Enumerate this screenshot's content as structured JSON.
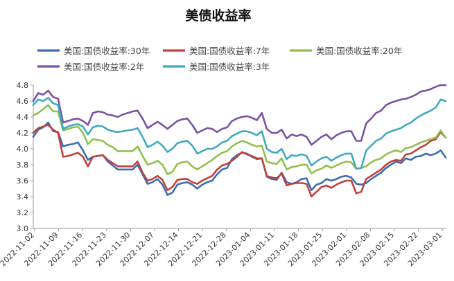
{
  "chart_data": {
    "type": "line",
    "title": "美债收益率",
    "xlabel": "",
    "ylabel": "",
    "ylim": [
      3.0,
      4.8
    ],
    "yticks": [
      "3.0",
      "3.2",
      "3.4",
      "3.6",
      "3.8",
      "4.0",
      "4.2",
      "4.4",
      "4.6",
      "4.8"
    ],
    "x_tick_labels": [
      "2022-11-02",
      "2022-11-09",
      "2022-11-16",
      "2022-11-23",
      "2022-11-30",
      "2022-12-07",
      "2022-12-14",
      "2022-12-21",
      "2022-12-28",
      "2023-01-04",
      "2023-01-11",
      "2023-01-18",
      "2023-01-25",
      "2023-02-01",
      "2023-02-08",
      "2023-02-15",
      "2023-02-22",
      "2023-03-01"
    ],
    "legend_position": "top",
    "grid": false,
    "x_count": 84,
    "series": [
      {
        "name": "美国:国债收益率:30年",
        "color": "#3b6db3",
        "values": [
          4.15,
          4.24,
          4.27,
          4.33,
          4.22,
          4.21,
          4.03,
          4.05,
          4.06,
          4.08,
          3.98,
          3.86,
          3.9,
          3.91,
          3.92,
          3.84,
          3.79,
          3.74,
          3.74,
          3.74,
          3.74,
          3.8,
          3.68,
          3.56,
          3.58,
          3.62,
          3.55,
          3.42,
          3.45,
          3.55,
          3.57,
          3.58,
          3.55,
          3.5,
          3.55,
          3.58,
          3.6,
          3.68,
          3.74,
          3.76,
          3.87,
          3.92,
          3.95,
          3.94,
          3.9,
          3.87,
          3.88,
          3.65,
          3.62,
          3.61,
          3.7,
          3.58,
          3.56,
          3.58,
          3.62,
          3.63,
          3.48,
          3.55,
          3.57,
          3.62,
          3.6,
          3.62,
          3.65,
          3.66,
          3.64,
          3.56,
          3.55,
          3.57,
          3.62,
          3.66,
          3.7,
          3.76,
          3.8,
          3.84,
          3.82,
          3.88,
          3.86,
          3.9,
          3.91,
          3.94,
          3.92,
          3.94,
          3.98,
          3.89
        ]
      },
      {
        "name": "美国:国债收益率:7年",
        "color": "#c0413b",
        "values": [
          4.2,
          4.26,
          4.28,
          4.3,
          4.24,
          4.2,
          3.9,
          3.91,
          3.93,
          3.95,
          3.9,
          3.78,
          3.9,
          3.91,
          3.92,
          3.86,
          3.82,
          3.78,
          3.78,
          3.78,
          3.78,
          3.84,
          3.7,
          3.6,
          3.62,
          3.66,
          3.61,
          3.48,
          3.52,
          3.61,
          3.62,
          3.62,
          3.58,
          3.56,
          3.6,
          3.63,
          3.66,
          3.74,
          3.79,
          3.81,
          3.85,
          3.9,
          3.96,
          3.93,
          3.91,
          3.88,
          3.88,
          3.66,
          3.64,
          3.63,
          3.69,
          3.54,
          3.56,
          3.57,
          3.57,
          3.56,
          3.4,
          3.46,
          3.52,
          3.54,
          3.51,
          3.55,
          3.58,
          3.6,
          3.6,
          3.44,
          3.46,
          3.62,
          3.66,
          3.7,
          3.74,
          3.8,
          3.84,
          3.86,
          3.85,
          3.93,
          3.94,
          3.98,
          4.02,
          4.05,
          4.1,
          4.12,
          4.21,
          4.14
        ]
      },
      {
        "name": "美国:国债收益率:20年",
        "color": "#8fc04d",
        "values": [
          4.42,
          4.45,
          4.5,
          4.55,
          4.47,
          4.47,
          4.23,
          4.25,
          4.27,
          4.28,
          4.2,
          4.06,
          4.12,
          4.11,
          4.1,
          4.05,
          4.02,
          3.97,
          3.97,
          3.97,
          3.97,
          4.03,
          3.91,
          3.8,
          3.82,
          3.85,
          3.8,
          3.68,
          3.71,
          3.81,
          3.83,
          3.84,
          3.78,
          3.74,
          3.78,
          3.82,
          3.86,
          3.91,
          3.95,
          3.97,
          4.03,
          4.07,
          4.1,
          4.08,
          4.05,
          4.03,
          4.04,
          3.84,
          3.82,
          3.81,
          3.88,
          3.74,
          3.77,
          3.78,
          3.8,
          3.8,
          3.69,
          3.73,
          3.75,
          3.79,
          3.76,
          3.79,
          3.82,
          3.84,
          3.83,
          3.75,
          3.76,
          3.78,
          3.83,
          3.86,
          3.88,
          3.93,
          3.96,
          3.98,
          3.96,
          4.01,
          4.02,
          4.05,
          4.08,
          4.1,
          4.12,
          4.14,
          4.23,
          4.14
        ]
      },
      {
        "name": "美国:国债收益率:2年",
        "color": "#7b51a3",
        "values": [
          4.6,
          4.7,
          4.68,
          4.73,
          4.65,
          4.63,
          4.33,
          4.35,
          4.37,
          4.38,
          4.35,
          4.3,
          4.45,
          4.47,
          4.46,
          4.43,
          4.42,
          4.4,
          4.43,
          4.45,
          4.47,
          4.48,
          4.38,
          4.26,
          4.3,
          4.34,
          4.3,
          4.25,
          4.3,
          4.35,
          4.37,
          4.38,
          4.3,
          4.2,
          4.23,
          4.26,
          4.25,
          4.21,
          4.25,
          4.27,
          4.35,
          4.38,
          4.4,
          4.41,
          4.39,
          4.36,
          4.45,
          4.25,
          4.2,
          4.2,
          4.24,
          4.13,
          4.18,
          4.16,
          4.18,
          4.15,
          4.05,
          4.1,
          4.15,
          4.18,
          4.12,
          4.17,
          4.2,
          4.22,
          4.22,
          4.1,
          4.1,
          4.32,
          4.38,
          4.45,
          4.48,
          4.55,
          4.58,
          4.6,
          4.62,
          4.63,
          4.65,
          4.68,
          4.72,
          4.73,
          4.75,
          4.78,
          4.8,
          4.8
        ]
      },
      {
        "name": "美国:国债收益率:3年",
        "color": "#3fa9c2",
        "values": [
          4.55,
          4.62,
          4.6,
          4.64,
          4.57,
          4.55,
          4.25,
          4.28,
          4.3,
          4.31,
          4.28,
          4.18,
          4.27,
          4.29,
          4.28,
          4.24,
          4.22,
          4.21,
          4.22,
          4.23,
          4.24,
          4.26,
          4.15,
          4.02,
          4.05,
          4.09,
          4.04,
          3.96,
          4.0,
          4.07,
          4.09,
          4.1,
          4.04,
          3.94,
          3.97,
          4.0,
          4.0,
          4.03,
          4.08,
          4.1,
          4.16,
          4.19,
          4.22,
          4.22,
          4.2,
          4.17,
          4.22,
          4.0,
          3.96,
          3.95,
          4.0,
          3.87,
          3.92,
          3.91,
          3.93,
          3.91,
          3.79,
          3.84,
          3.88,
          3.9,
          3.85,
          3.89,
          3.92,
          3.94,
          3.94,
          3.75,
          3.76,
          3.98,
          4.04,
          4.1,
          4.13,
          4.19,
          4.22,
          4.24,
          4.26,
          4.3,
          4.33,
          4.38,
          4.42,
          4.45,
          4.48,
          4.52,
          4.62,
          4.6
        ]
      }
    ]
  }
}
